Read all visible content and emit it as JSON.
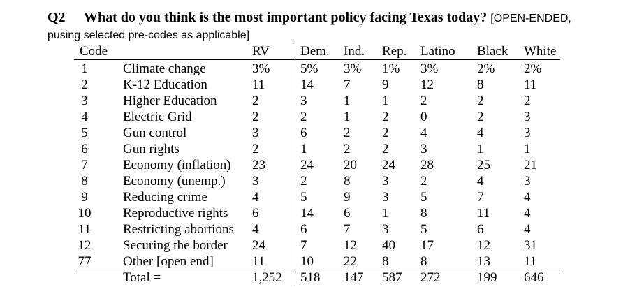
{
  "question": {
    "number": "Q2",
    "text": "What do you think is the most important policy facing Texas today?",
    "note": "[OPEN-ENDED,",
    "note_cont": "pusing selected pre-codes as applicable]"
  },
  "table": {
    "headers": [
      "Code",
      "RV",
      "Dem.",
      "Ind.",
      "Rep.",
      "Latino",
      "Black",
      "White"
    ],
    "rows": [
      {
        "code": "1",
        "label": "Climate change",
        "values": [
          "3%",
          "5%",
          "3%",
          "1%",
          "3%",
          "2%",
          "2%"
        ]
      },
      {
        "code": "2",
        "label": "K-12 Education",
        "values": [
          "11",
          "14",
          "7",
          "9",
          "12",
          "8",
          "11"
        ]
      },
      {
        "code": "3",
        "label": "Higher Education",
        "values": [
          "2",
          "3",
          "1",
          "1",
          "2",
          "2",
          "2"
        ]
      },
      {
        "code": "4",
        "label": "Electric Grid",
        "values": [
          "2",
          "2",
          "1",
          "2",
          "0",
          "2",
          "3"
        ]
      },
      {
        "code": "5",
        "label": "Gun control",
        "values": [
          "3",
          "6",
          "2",
          "2",
          "4",
          "4",
          "3"
        ]
      },
      {
        "code": "6",
        "label": "Gun rights",
        "values": [
          "2",
          "1",
          "2",
          "2",
          "3",
          "1",
          "1"
        ]
      },
      {
        "code": "7",
        "label": "Economy (inflation)",
        "values": [
          "23",
          "24",
          "20",
          "24",
          "28",
          "25",
          "21"
        ]
      },
      {
        "code": "8",
        "label": "Economy (unemp.)",
        "values": [
          "3",
          "2",
          "8",
          "3",
          "2",
          "4",
          "3"
        ]
      },
      {
        "code": "9",
        "label": "Reducing crime",
        "values": [
          "4",
          "5",
          "9",
          "3",
          "5",
          "7",
          "4"
        ]
      },
      {
        "code": "10",
        "label": "Reproductive rights",
        "values": [
          "6",
          "14",
          "6",
          "1",
          "8",
          "11",
          "4"
        ]
      },
      {
        "code": "11",
        "label": "Restricting abortions",
        "values": [
          "4",
          "6",
          "7",
          "3",
          "5",
          "6",
          "4"
        ]
      },
      {
        "code": "12",
        "label": "Securing the border",
        "values": [
          "24",
          "7",
          "12",
          "40",
          "17",
          "12",
          "31"
        ]
      },
      {
        "code": "77",
        "label": "Other [open end]",
        "values": [
          "11",
          "10",
          "22",
          "8",
          "8",
          "13",
          "11"
        ]
      }
    ],
    "total": {
      "label": "Total =",
      "values": [
        "1,252",
        "518",
        "147",
        "587",
        "272",
        "199",
        "646"
      ]
    }
  }
}
